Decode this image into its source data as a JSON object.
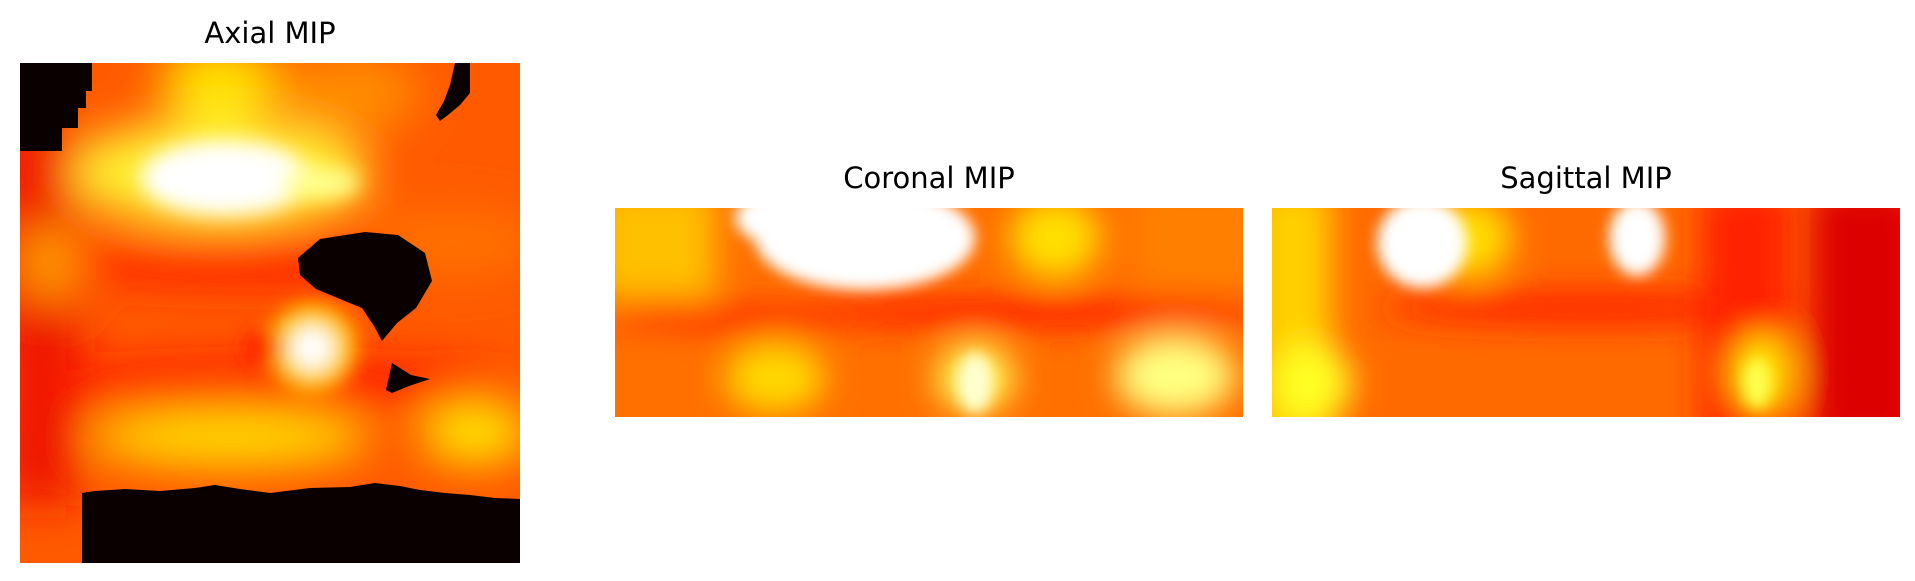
{
  "panels": {
    "axial": {
      "title": "Axial MIP"
    },
    "coronal": {
      "title": "Coronal MIP"
    },
    "sagittal": {
      "title": "Sagittal MIP"
    }
  },
  "colormap": "hot",
  "colors": {
    "background": "#ffffff",
    "hot_black": "#0b0000",
    "hot_red": "#ff0000",
    "hot_orange": "#ff7a00",
    "hot_yellow": "#ffff00",
    "hot_white": "#ffffff"
  }
}
